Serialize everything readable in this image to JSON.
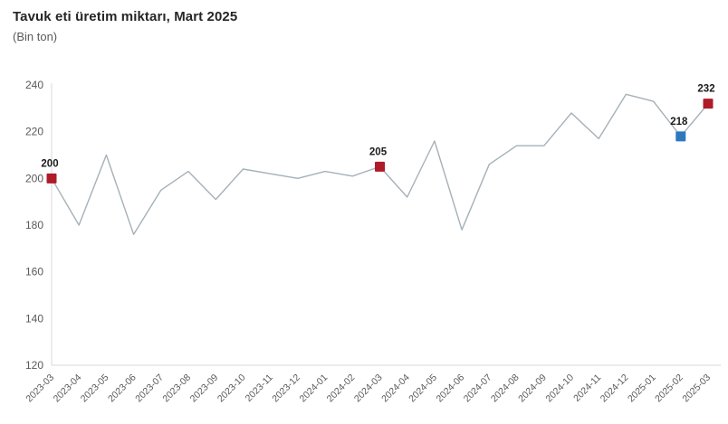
{
  "chart_data": {
    "type": "line",
    "title": "Tavuk eti üretim miktarı, Mart 2025",
    "subtitle": "(Bin ton)",
    "categories": [
      "2023-03",
      "2023-04",
      "2023-05",
      "2023-06",
      "2023-07",
      "2023-08",
      "2023-09",
      "2023-10",
      "2023-11",
      "2023-12",
      "2024-01",
      "2024-02",
      "2024-03",
      "2024-04",
      "2024-05",
      "2024-06",
      "2024-07",
      "2024-08",
      "2024-09",
      "2024-10",
      "2024-11",
      "2024-12",
      "2025-01",
      "2025-02",
      "2025-03"
    ],
    "values": [
      200,
      180,
      210,
      176,
      195,
      203,
      191,
      204,
      202,
      200,
      203,
      201,
      205,
      192,
      216,
      178,
      206,
      214,
      214,
      228,
      217,
      236,
      233,
      218,
      232
    ],
    "ylim": [
      120,
      240
    ],
    "yticks": [
      240,
      220,
      200,
      180,
      160,
      140,
      120
    ],
    "grid": false,
    "legend": "none",
    "xlabel": "",
    "ylabel": "",
    "highlights": [
      {
        "category": "2023-03",
        "index": 0,
        "value": 200,
        "label": "200",
        "color": "#ae1c28"
      },
      {
        "category": "2024-03",
        "index": 12,
        "value": 205,
        "label": "205",
        "color": "#ae1c28"
      },
      {
        "category": "2025-02",
        "index": 23,
        "value": 218,
        "label": "218",
        "color": "#2e79bd"
      },
      {
        "category": "2025-03",
        "index": 24,
        "value": 232,
        "label": "232",
        "color": "#ae1c28"
      }
    ],
    "colors": {
      "line": "#a5b1b7",
      "marker_red": "#ae1c28",
      "marker_blue": "#2e79bd",
      "axis_line": "#d9d9d9",
      "tick_text": "#595959",
      "title_text": "#262626",
      "subtitle_text": "#595959",
      "annotation_text": "#1a1a1a",
      "background": "#ffffff"
    }
  }
}
